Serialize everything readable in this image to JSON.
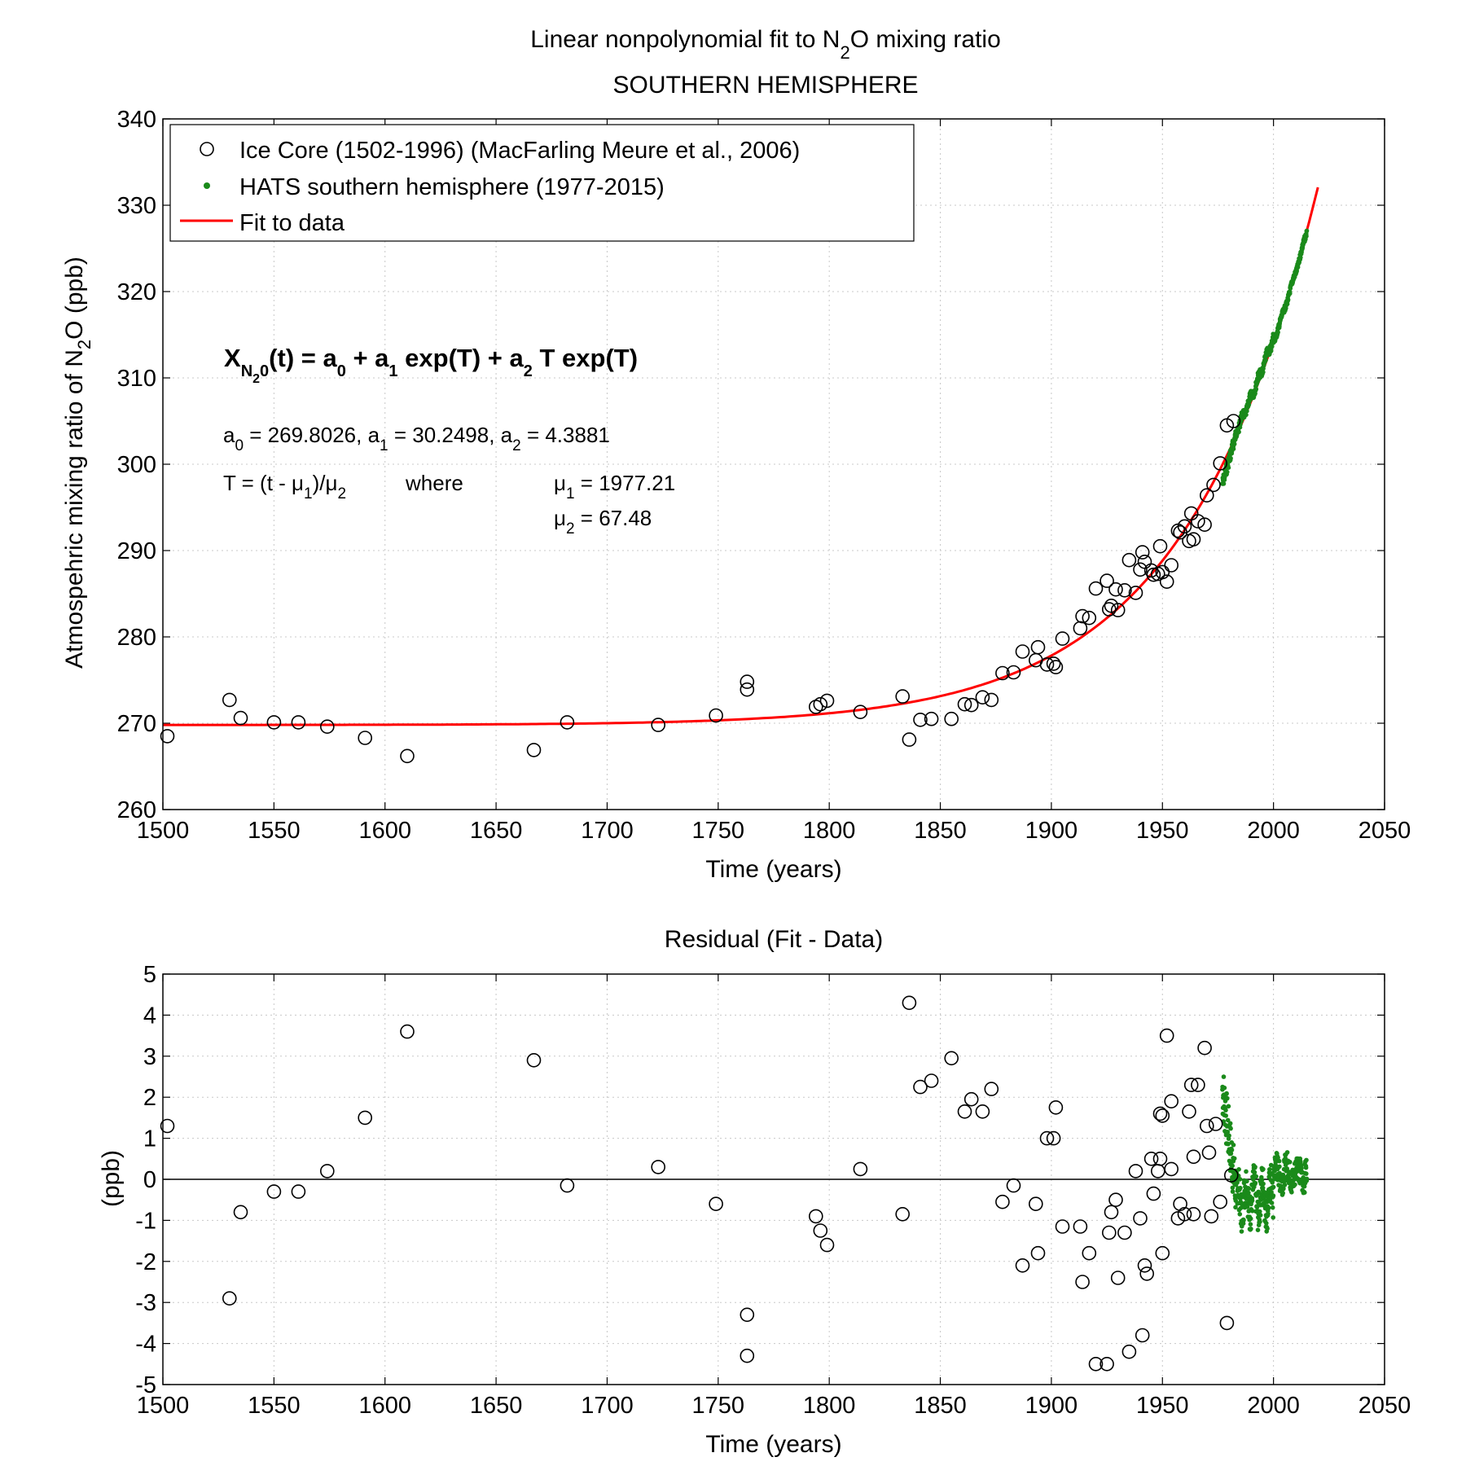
{
  "figure": {
    "title_lines": [
      {
        "prefix": "Linear nonpolynomial fit to N",
        "sub": "2",
        "suffix": "O mixing ratio"
      },
      {
        "prefix": "SOUTHERN HEMISPHERE",
        "sub": "",
        "suffix": ""
      }
    ]
  },
  "chart_data": [
    {
      "type": "scatter",
      "name": "main-fit",
      "title": "",
      "xlabel": "Time (years)",
      "ylabel_parts": {
        "prefix": "Atmospehric mixing ratio of N",
        "sub": "2",
        "suffix": "O (ppb)"
      },
      "xlim": [
        1500,
        2050
      ],
      "ylim": [
        260,
        340
      ],
      "xticks": [
        1500,
        1550,
        1600,
        1650,
        1700,
        1750,
        1800,
        1850,
        1900,
        1950,
        2000,
        2050
      ],
      "yticks": [
        260,
        270,
        280,
        290,
        300,
        310,
        320,
        330,
        340
      ],
      "grid": true,
      "legend_placement": "top-left",
      "legend": [
        {
          "label": "Ice Core (1502-1996) (MacFarling Meure et al., 2006)",
          "marker": "open-circle",
          "color": "#000000"
        },
        {
          "label": "HATS southern hemisphere (1977-2015)",
          "marker": "dot",
          "color": "#1a8a1a"
        },
        {
          "label": "Fit to data",
          "marker": "line",
          "color": "#ff0000"
        }
      ],
      "fit": {
        "a0": 269.8026,
        "a1": 30.2498,
        "a2": 4.3881,
        "mu1": 1977.21,
        "mu2": 67.48,
        "x_range": [
          1500,
          2020
        ],
        "color": "#ff0000"
      },
      "annotations": {
        "equation": {
          "x": "X",
          "sub1": "N",
          "sub2": "2",
          "sub3": "0",
          "rest_1": "(t) = a",
          "s0": "0",
          "rest_2": " + a",
          "s1": "1",
          "rest_3": " exp(T) + a",
          "s2": "2",
          "rest_4": " T exp(T)"
        },
        "coeffs": {
          "a": "a",
          "s0": "0",
          "v0": " = 269.8026, a",
          "s1": "1",
          "v1": " = 30.2498, a",
          "s2": "2",
          "v2": " =  4.3881"
        },
        "tdef": {
          "p1": "T = (t - μ",
          "s1": "1",
          "p2": ")/μ",
          "s2": "2",
          "where": "where"
        },
        "mu1": {
          "mu": "μ",
          "sub": "1",
          "val": " = 1977.21"
        },
        "mu2": {
          "mu": "μ",
          "sub": "2",
          "val": " =  67.48"
        }
      },
      "ice_core": {
        "color": "#000000",
        "points": [
          [
            1502,
            268.5
          ],
          [
            1530,
            272.7
          ],
          [
            1535,
            270.6
          ],
          [
            1550,
            270.1
          ],
          [
            1561,
            270.1
          ],
          [
            1574,
            269.6
          ],
          [
            1591,
            268.3
          ],
          [
            1610,
            266.2
          ],
          [
            1667,
            266.9
          ],
          [
            1682,
            270.1
          ],
          [
            1723,
            269.8
          ],
          [
            1749,
            270.9
          ],
          [
            1763,
            274.8
          ],
          [
            1763,
            273.9
          ],
          [
            1794,
            271.9
          ],
          [
            1796,
            272.2
          ],
          [
            1799,
            272.6
          ],
          [
            1814,
            271.3
          ],
          [
            1833,
            273.1
          ],
          [
            1836,
            268.1
          ],
          [
            1841,
            270.4
          ],
          [
            1846,
            270.5
          ],
          [
            1855,
            270.5
          ],
          [
            1861,
            272.2
          ],
          [
            1864,
            272.1
          ],
          [
            1869,
            273.0
          ],
          [
            1873,
            272.7
          ],
          [
            1878,
            275.8
          ],
          [
            1883,
            275.9
          ],
          [
            1887,
            278.3
          ],
          [
            1893,
            277.3
          ],
          [
            1894,
            278.8
          ],
          [
            1898,
            276.8
          ],
          [
            1901,
            276.9
          ],
          [
            1902,
            276.5
          ],
          [
            1905,
            279.8
          ],
          [
            1913,
            281.0
          ],
          [
            1914,
            282.4
          ],
          [
            1917,
            282.2
          ],
          [
            1920,
            285.6
          ],
          [
            1925,
            286.5
          ],
          [
            1926,
            283.2
          ],
          [
            1927,
            283.6
          ],
          [
            1929,
            285.5
          ],
          [
            1930,
            283.1
          ],
          [
            1933,
            285.4
          ],
          [
            1935,
            288.9
          ],
          [
            1938,
            285.1
          ],
          [
            1940,
            287.8
          ],
          [
            1941,
            289.8
          ],
          [
            1942,
            288.7
          ],
          [
            1945,
            287.7
          ],
          [
            1946,
            287.2
          ],
          [
            1948,
            287.3
          ],
          [
            1949,
            290.5
          ],
          [
            1950,
            287.5
          ],
          [
            1952,
            286.4
          ],
          [
            1954,
            288.3
          ],
          [
            1957,
            292.3
          ],
          [
            1958,
            292.1
          ],
          [
            1960,
            292.8
          ],
          [
            1962,
            291.1
          ],
          [
            1963,
            294.3
          ],
          [
            1964,
            291.3
          ],
          [
            1966,
            293.4
          ],
          [
            1969,
            293.0
          ],
          [
            1970,
            296.4
          ],
          [
            1973,
            297.6
          ],
          [
            1976,
            300.1
          ],
          [
            1979,
            304.5
          ],
          [
            1982,
            305.0
          ]
        ]
      },
      "hats": {
        "color": "#1a8a1a",
        "start": 1977.0,
        "end": 2015.0,
        "step": 0.0833,
        "note_pattern": "monthly"
      }
    },
    {
      "type": "scatter",
      "name": "residual",
      "title": "Residual (Fit - Data)",
      "xlabel": "Time (years)",
      "ylabel": "(ppb)",
      "xlim": [
        1500,
        2050
      ],
      "ylim": [
        -5,
        5
      ],
      "xticks": [
        1500,
        1550,
        1600,
        1650,
        1700,
        1750,
        1800,
        1850,
        1900,
        1950,
        2000,
        2050
      ],
      "yticks": [
        -5,
        -4,
        -3,
        -2,
        -1,
        0,
        1,
        2,
        3,
        4,
        5
      ],
      "grid": true,
      "zero_line": true,
      "ice_core_residuals": [
        [
          1502,
          1.3
        ],
        [
          1530,
          -2.9
        ],
        [
          1535,
          -0.8
        ],
        [
          1550,
          -0.3
        ],
        [
          1561,
          -0.3
        ],
        [
          1574,
          0.2
        ],
        [
          1591,
          1.5
        ],
        [
          1610,
          3.6
        ],
        [
          1667,
          2.9
        ],
        [
          1682,
          -0.15
        ],
        [
          1723,
          0.3
        ],
        [
          1749,
          -0.6
        ],
        [
          1763,
          -3.3
        ],
        [
          1763,
          -4.3
        ],
        [
          1794,
          -0.9
        ],
        [
          1796,
          -1.25
        ],
        [
          1799,
          -1.6
        ],
        [
          1814,
          0.25
        ],
        [
          1833,
          -0.85
        ],
        [
          1836,
          4.3
        ],
        [
          1841,
          2.25
        ],
        [
          1846,
          2.4
        ],
        [
          1855,
          2.95
        ],
        [
          1861,
          1.65
        ],
        [
          1864,
          1.95
        ],
        [
          1869,
          1.65
        ],
        [
          1873,
          2.2
        ],
        [
          1878,
          -0.55
        ],
        [
          1883,
          -0.15
        ],
        [
          1887,
          -2.1
        ],
        [
          1893,
          -0.6
        ],
        [
          1894,
          -1.8
        ],
        [
          1898,
          1.0
        ],
        [
          1901,
          1.0
        ],
        [
          1902,
          1.75
        ],
        [
          1905,
          -1.15
        ],
        [
          1913,
          -1.15
        ],
        [
          1914,
          -2.5
        ],
        [
          1917,
          -1.8
        ],
        [
          1920,
          -4.5
        ],
        [
          1925,
          -4.5
        ],
        [
          1926,
          -1.3
        ],
        [
          1927,
          -0.8
        ],
        [
          1929,
          -0.5
        ],
        [
          1930,
          -2.4
        ],
        [
          1933,
          -1.3
        ],
        [
          1935,
          -4.2
        ],
        [
          1938,
          0.2
        ],
        [
          1940,
          -0.95
        ],
        [
          1941,
          -3.8
        ],
        [
          1942,
          -2.1
        ],
        [
          1943,
          -2.3
        ],
        [
          1945,
          0.5
        ],
        [
          1946,
          -0.35
        ],
        [
          1948,
          0.2
        ],
        [
          1949,
          0.5
        ],
        [
          1949,
          1.6
        ],
        [
          1950,
          -1.8
        ],
        [
          1950,
          1.55
        ],
        [
          1952,
          3.5
        ],
        [
          1954,
          1.9
        ],
        [
          1954,
          0.25
        ],
        [
          1957,
          -0.95
        ],
        [
          1958,
          -0.6
        ],
        [
          1960,
          -0.85
        ],
        [
          1962,
          1.65
        ],
        [
          1963,
          2.3
        ],
        [
          1964,
          -0.85
        ],
        [
          1964,
          0.55
        ],
        [
          1966,
          2.3
        ],
        [
          1969,
          3.2
        ],
        [
          1970,
          1.3
        ],
        [
          1971,
          0.65
        ],
        [
          1972,
          -0.9
        ],
        [
          1974,
          1.35
        ],
        [
          1976,
          -0.55
        ],
        [
          1979,
          -3.5
        ],
        [
          1981,
          0.1
        ]
      ]
    }
  ]
}
